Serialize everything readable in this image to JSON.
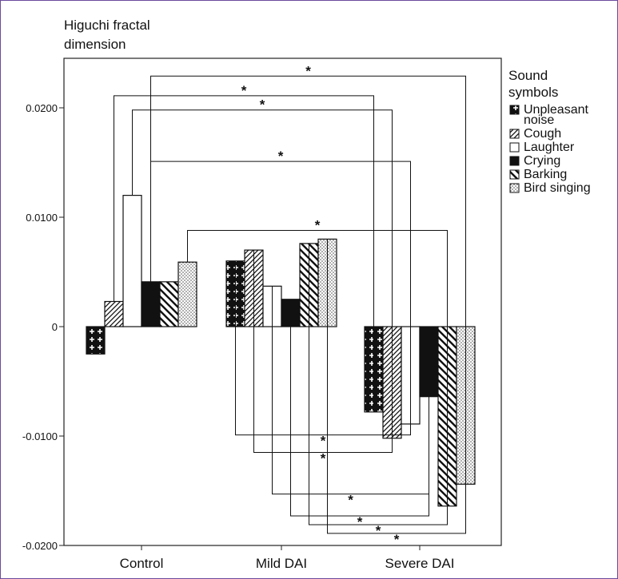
{
  "chart_data": {
    "type": "bar",
    "title": "",
    "ylabel": [
      "Higuchi fractal",
      "dimension"
    ],
    "xlabel": "",
    "ylim": [
      -0.02,
      0.0245
    ],
    "grid": false,
    "legend_position": "right",
    "legend_title": [
      "Sound",
      "symbols"
    ],
    "yticks": [
      0.02,
      0.01,
      0,
      -0.01,
      -0.02
    ],
    "ytick_labels": [
      "0.0200",
      "0.0100",
      "0",
      "-0.0100",
      "-0.0200"
    ],
    "categories": [
      "Control",
      "Mild DAI",
      "Severe DAI"
    ],
    "series": [
      {
        "name": [
          "Unpleasant",
          "noise"
        ],
        "pattern": "cross",
        "values": [
          -0.0025,
          0.006,
          -0.0078
        ]
      },
      {
        "name": [
          "Cough"
        ],
        "pattern": "diag-dense",
        "values": [
          0.0023,
          0.007,
          -0.0102
        ]
      },
      {
        "name": [
          "Laughter"
        ],
        "pattern": "plain",
        "values": [
          0.012,
          0.0037,
          -0.0089
        ]
      },
      {
        "name": [
          "Crying"
        ],
        "pattern": "solid",
        "values": [
          0.0041,
          0.0025,
          -0.0064
        ]
      },
      {
        "name": [
          "Barking"
        ],
        "pattern": "backdiag-wide",
        "values": [
          0.0041,
          0.0076,
          -0.0164
        ]
      },
      {
        "name": [
          "Bird singing"
        ],
        "pattern": "dots",
        "values": [
          0.0059,
          0.008,
          -0.0144
        ]
      }
    ],
    "annotations": {
      "marker": "*",
      "significance": [
        {
          "from": [
            0,
            3
          ],
          "to": [
            2,
            5
          ],
          "level": 0.0229
        },
        {
          "from": [
            0,
            1
          ],
          "to": [
            2,
            0
          ],
          "level": 0.0211
        },
        {
          "from": [
            0,
            2
          ],
          "to": [
            2,
            1
          ],
          "level": 0.0198
        },
        {
          "from": [
            0,
            3
          ],
          "to": [
            2,
            2
          ],
          "level": 0.0151
        },
        {
          "from": [
            0,
            5
          ],
          "to": [
            2,
            4
          ],
          "level": 0.0088
        },
        {
          "from": [
            1,
            0
          ],
          "to": [
            2,
            2
          ],
          "level": -0.0099
        },
        {
          "from": [
            1,
            1
          ],
          "to": [
            2,
            1
          ],
          "level": -0.0115
        },
        {
          "from": [
            1,
            2
          ],
          "to": [
            2,
            3
          ],
          "level": -0.0153
        },
        {
          "from": [
            1,
            3
          ],
          "to": [
            2,
            3
          ],
          "level": -0.0173
        },
        {
          "from": [
            1,
            4
          ],
          "to": [
            2,
            4
          ],
          "level": -0.0181
        },
        {
          "from": [
            1,
            5
          ],
          "to": [
            2,
            5
          ],
          "level": -0.0189
        }
      ]
    }
  }
}
